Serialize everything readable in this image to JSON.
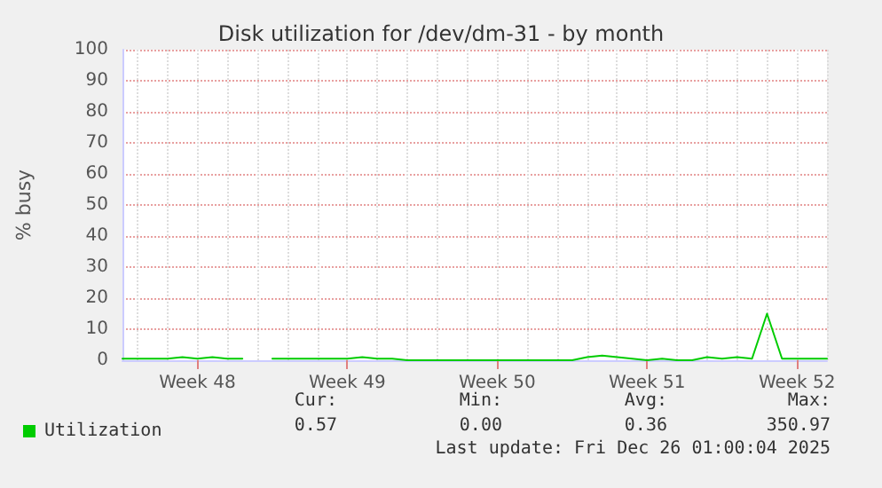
{
  "chart_data": {
    "type": "line",
    "title": "Disk utilization for /dev/dm-31 - by month",
    "ylabel": "% busy",
    "categories": [
      null,
      null,
      null,
      null,
      null,
      "Week 48",
      null,
      null,
      null,
      null,
      null,
      null,
      null,
      null,
      null,
      "Week 49",
      null,
      null,
      null,
      null,
      null,
      null,
      null,
      null,
      null,
      "Week 50",
      null,
      null,
      null,
      null,
      null,
      null,
      null,
      null,
      null,
      "Week 51",
      null,
      null,
      null,
      null,
      null,
      null,
      null,
      null,
      null,
      "Week 52",
      null,
      null
    ],
    "series": [
      {
        "name": "Utilization",
        "color": "#00cc00",
        "values": [
          0.5,
          0.5,
          0.5,
          0.5,
          1,
          0.5,
          1,
          0.5,
          0.5,
          null,
          0.5,
          0.5,
          0.5,
          0.5,
          0.5,
          0.5,
          1,
          0.5,
          0.5,
          0,
          0,
          0,
          0,
          0,
          0,
          0,
          0,
          0,
          0,
          0,
          0,
          1,
          1.5,
          1,
          0.5,
          0,
          0.5,
          0,
          0,
          1,
          0.5,
          1,
          0.5,
          15,
          0.5,
          0.5,
          0.5,
          0.5
        ]
      }
    ],
    "ylim": [
      0,
      100
    ],
    "yticks": [
      0,
      10,
      20,
      30,
      40,
      50,
      60,
      70,
      80,
      90,
      100
    ],
    "grid": true,
    "legend": "bottom left",
    "marker": "none",
    "line_style": "solid",
    "annotations": [
      "Cur:",
      "Min:",
      "Avg:",
      "Max:",
      "0.57",
      "0.00",
      "0.36",
      "350.97",
      "Last update: Fri Dec 26 01:00:04 2025"
    ]
  }
}
